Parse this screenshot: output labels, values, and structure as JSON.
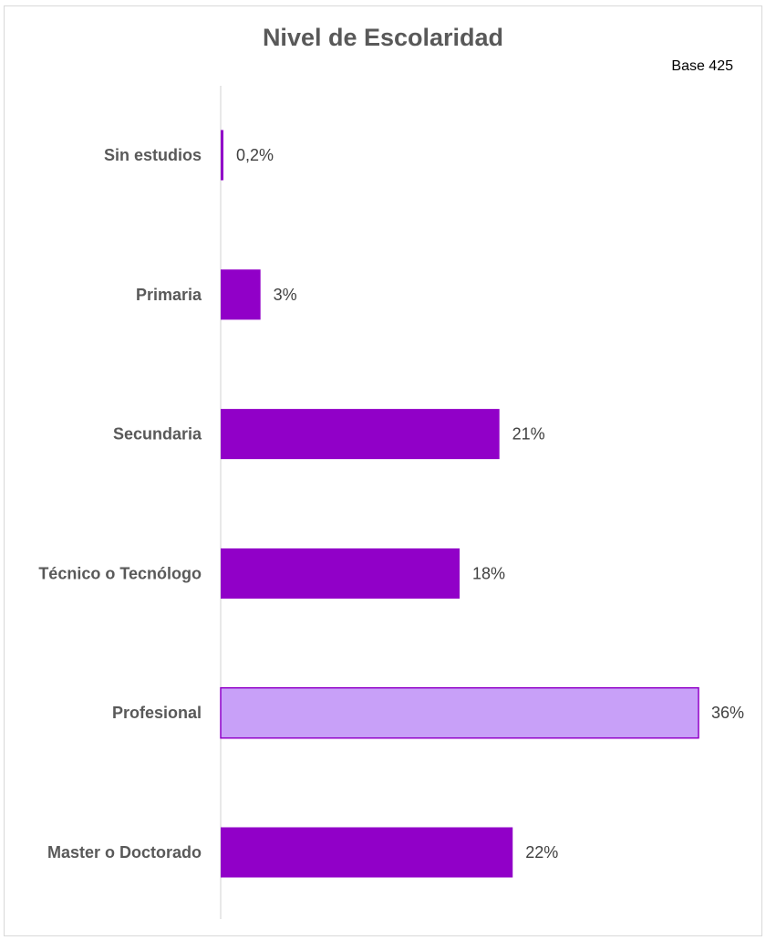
{
  "chart_data": {
    "type": "bar",
    "orientation": "horizontal",
    "title": "Nivel de Escolaridad",
    "note": "Base 425",
    "categories": [
      "Sin estudios",
      "Primaria",
      "Secundaria",
      "Técnico o Tecnólogo",
      "Profesional",
      "Master o Doctorado"
    ],
    "values": [
      0.2,
      3,
      21,
      18,
      36,
      22
    ],
    "data_labels": [
      "0,2%",
      "3%",
      "21%",
      "18%",
      "36%",
      "22%"
    ],
    "unit": "%",
    "xlim": [
      0,
      36
    ],
    "grid": false,
    "legend": "none",
    "highlight_index": 4,
    "colors": {
      "bar": "#9100C8",
      "highlight": "#C8A0F8",
      "highlight_border": "#9100C8",
      "axis": "#d0d0d0"
    }
  }
}
